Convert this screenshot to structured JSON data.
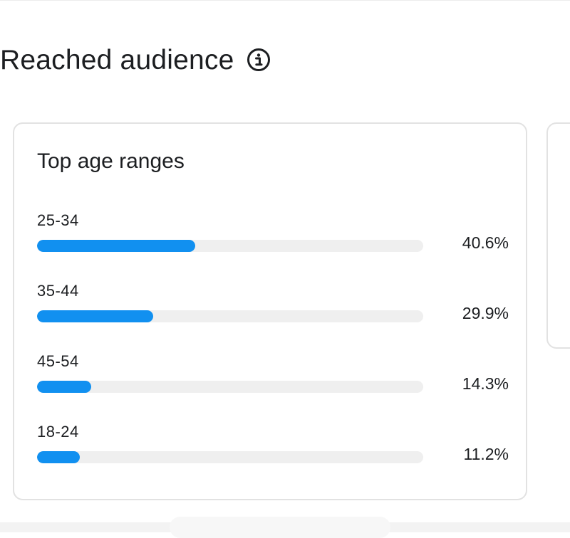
{
  "section": {
    "title": "Reached audience",
    "info_icon": "info-icon"
  },
  "card": {
    "title": "Top age ranges",
    "accent_color": "#1190f0",
    "track_color": "#efefef",
    "rows": [
      {
        "label": "25-34",
        "value": "40.6%",
        "fraction": 0.41
      },
      {
        "label": "35-44",
        "value": "29.9%",
        "fraction": 0.3
      },
      {
        "label": "45-54",
        "value": "14.3%",
        "fraction": 0.14
      },
      {
        "label": "18-24",
        "value": "11.2%",
        "fraction": 0.11
      }
    ]
  }
}
